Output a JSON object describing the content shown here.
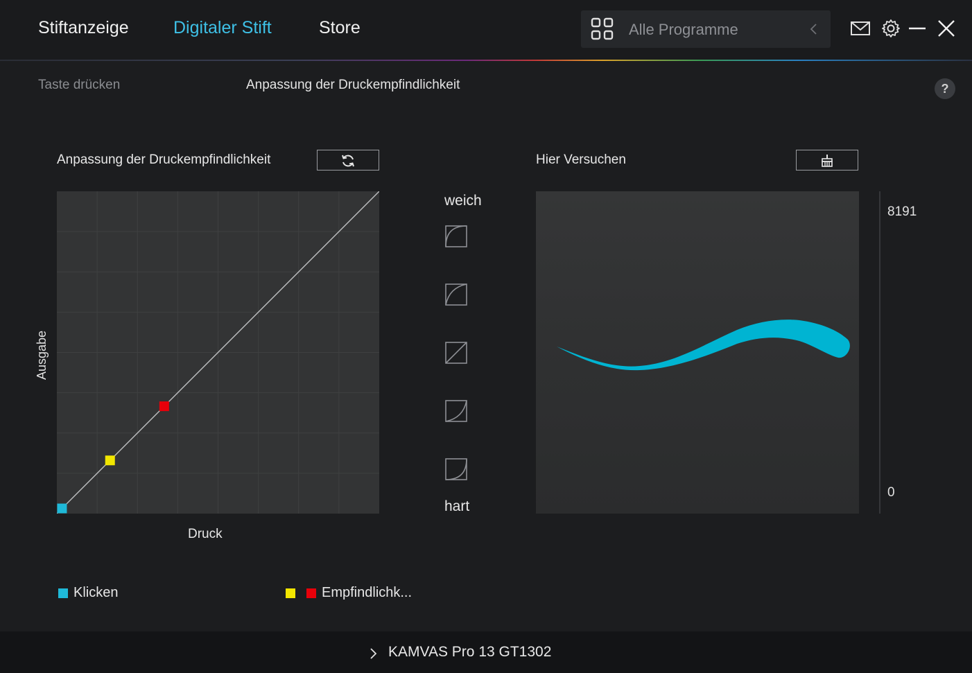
{
  "header": {
    "tabs": [
      {
        "label": "Stiftanzeige"
      },
      {
        "label": "Digitaler Stift",
        "active": true
      },
      {
        "label": "Store"
      }
    ],
    "program_select": {
      "label": "Alle Programme",
      "icon": "app-grid-icon"
    },
    "icons": [
      "mail-icon",
      "gear-icon",
      "minimize-icon",
      "close-icon"
    ]
  },
  "subtabs": [
    {
      "label": "Taste drücken"
    },
    {
      "label": "Anpassung der Druckempfindlichkeit",
      "active": true
    }
  ],
  "help_label": "?",
  "pressure": {
    "title": "Anpassung der Druckempfindlichkeit",
    "reset_icon": "refresh-icon",
    "y_label": "Ausgabe",
    "x_label": "Druck",
    "points": [
      {
        "name": "klicken",
        "color": "#1fb9d8",
        "pressure": 0.016,
        "output": 0.016
      },
      {
        "name": "empfindlichkeit-1",
        "color": "#f2e600",
        "pressure": 0.165,
        "output": 0.165
      },
      {
        "name": "empfindlichkeit-2",
        "color": "#e8000a",
        "pressure": 0.333,
        "output": 0.333
      }
    ]
  },
  "presets": {
    "soft_label": "weich",
    "hard_label": "hart",
    "items": [
      "curve-softest-icon",
      "curve-soft-icon",
      "curve-linear-icon",
      "curve-hard-icon",
      "curve-hardest-icon"
    ]
  },
  "try_area": {
    "title": "Hier Versuchen",
    "clear_icon": "broom-icon",
    "stroke_color": "#00b4d2",
    "scale_max": "8191",
    "scale_min": "0"
  },
  "legend": {
    "click_label": "Klicken",
    "click_color": "#1fb9d8",
    "sens_label": "Empfindlichk...",
    "sens_colors": [
      "#f2e600",
      "#e8000a"
    ]
  },
  "footer": {
    "device": "KAMVAS Pro 13 GT1302"
  }
}
